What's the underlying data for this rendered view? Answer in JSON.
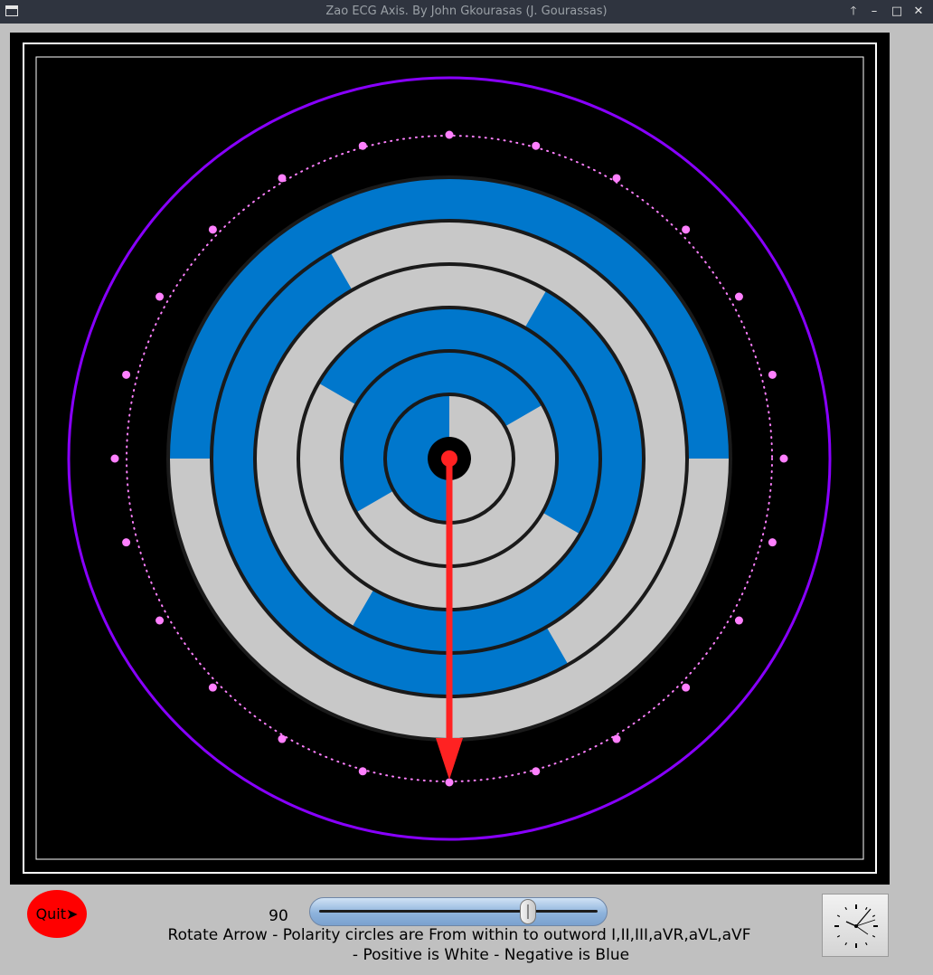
{
  "window": {
    "title": "Zao ECG Axis.  By John Gkourasas (J. Gourassas)",
    "buttons": {
      "raise": "🡑",
      "minimize": "–",
      "maximize": "□",
      "close": "✕"
    },
    "app_icon": "window-icon"
  },
  "colors": {
    "positive": "#c8c8c8",
    "negative": "#0077cc",
    "arrow": "#ff2222",
    "dots": "#ff80ff",
    "outer_circle": "#8800ff",
    "canvas": "#000000",
    "quit": "#ff0000"
  },
  "axis": {
    "angle_degrees": 90,
    "leads_inner_to_outer": [
      "I",
      "II",
      "III",
      "aVR",
      "aVL",
      "aVF"
    ],
    "tick_count": 24
  },
  "controls": {
    "quit_label": "Quit➤",
    "angle_value": "90",
    "slider_value": 90,
    "slider_min": -180,
    "slider_max": 180,
    "clock_icon": "clock-icon"
  },
  "captions": {
    "line1": "Rotate Arrow - Polarity circles are From within to outword I,II,III,aVR,aVL,aVF",
    "line2": "- Positive is White - Negative is Blue"
  }
}
